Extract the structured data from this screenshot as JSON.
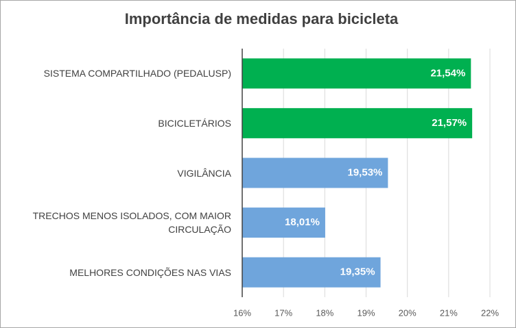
{
  "chart_data": {
    "type": "bar",
    "orientation": "horizontal",
    "title": "Importância de medidas para bicicleta",
    "categories": [
      "SISTEMA COMPARTILHADO (PEDALUSP)",
      "BICICLETÁRIOS",
      "VIGILÂNCIA",
      "TRECHOS MENOS ISOLADOS, COM MAIOR CIRCULAÇÃO",
      "MELHORES CONDIÇÕES NAS VIAS"
    ],
    "values": [
      21.54,
      21.57,
      19.53,
      18.01,
      19.35
    ],
    "value_labels": [
      "21,54%",
      "21,57%",
      "19,53%",
      "18,01%",
      "19,35%"
    ],
    "colors": [
      "#00b050",
      "#00b050",
      "#6fa5dc",
      "#6fa5dc",
      "#6fa5dc"
    ],
    "xlim": [
      16,
      22
    ],
    "xticks": [
      {
        "value": 16,
        "label": "16%"
      },
      {
        "value": 17,
        "label": "17%"
      },
      {
        "value": 18,
        "label": "18%"
      },
      {
        "value": 19,
        "label": "19%"
      },
      {
        "value": 20,
        "label": "20%"
      },
      {
        "value": 21,
        "label": "21%"
      },
      {
        "value": 22,
        "label": "22%"
      }
    ],
    "grid": true
  }
}
